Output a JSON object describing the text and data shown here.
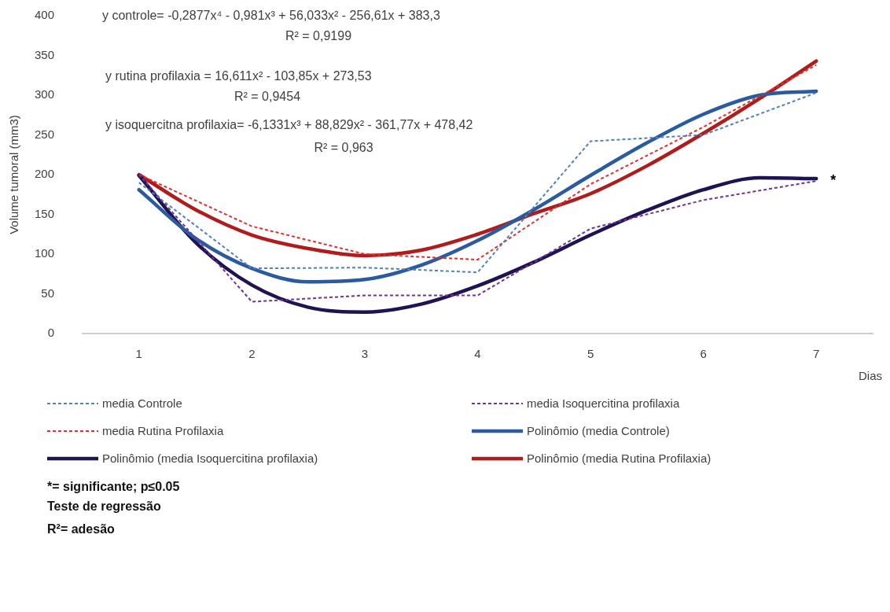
{
  "chart_data": {
    "type": "line",
    "ylabel": "Volume tumoral (mm3)",
    "xlabel": "Dias",
    "x": [
      1,
      2,
      3,
      4,
      5,
      6,
      7
    ],
    "xlim": [
      0.5,
      7.5
    ],
    "xticks": [
      1,
      2,
      3,
      4,
      5,
      6,
      7
    ],
    "ylim": [
      0,
      400
    ],
    "yticks": [
      0,
      50,
      100,
      150,
      200,
      250,
      300,
      350,
      400
    ],
    "grid": false,
    "legend": "bottom",
    "marker": "none",
    "series": [
      {
        "name": "media Controle",
        "color": "#4f81bd",
        "line_style": "dashed",
        "values": [
          190,
          82,
          83,
          77,
          242,
          250,
          303
        ]
      },
      {
        "name": "media Isoquercitina profilaxia",
        "color": "#7030a0",
        "line_style": "dashed",
        "values": [
          200,
          40,
          48,
          48,
          132,
          168,
          192
        ]
      },
      {
        "name": "media Rutina Profilaxia",
        "color": "#e0302a",
        "line_style": "dashed",
        "values": [
          200,
          135,
          100,
          93,
          188,
          260,
          338
        ]
      },
      {
        "name": "Polinômio (media Controle)",
        "color": "#2a5aa0",
        "line_style": "solid",
        "x": [
          1,
          1.5,
          2,
          2.5,
          3,
          3.5,
          4,
          4.5,
          5,
          5.5,
          6,
          6.5,
          7
        ],
        "values": [
          181,
          120,
          82,
          65,
          68,
          86,
          117,
          156,
          199,
          240,
          276,
          300,
          305
        ]
      },
      {
        "name": "Polinômio (media Isoquercitina profilaxia)",
        "color": "#1f1452",
        "line_style": "solid",
        "x": [
          1,
          1.5,
          2,
          2.5,
          3,
          3.5,
          4,
          4.5,
          5,
          5.5,
          6,
          6.5,
          7
        ],
        "values": [
          199,
          115,
          61,
          33,
          27,
          37,
          60,
          90,
          124,
          155,
          181,
          196,
          195
        ]
      },
      {
        "name": "Polinômio (media Rutina Profilaxia)",
        "color": "#b01c1c",
        "line_style": "solid",
        "x": [
          1,
          1.5,
          2,
          2.5,
          3,
          3.5,
          4,
          4.5,
          5,
          5.5,
          6,
          6.5,
          7
        ],
        "values": [
          200,
          156,
          124,
          107,
          98,
          105,
          125,
          151,
          176,
          211,
          252,
          296,
          343
        ]
      }
    ],
    "annotations": [
      "y controle= -0,2877x⁴ - 0,981x³ + 56,033x² - 256,61x + 383,3",
      "R² = 0,9199",
      "y rutina profilaxia = 16,611x² - 103,85x + 273,53",
      "R² = 0,9454",
      "y isoquercitna profilaxia= -6,1331x³ + 88,829x² - 361,77x + 478,42",
      "R² = 0,963",
      {
        "text": "*",
        "x": 7,
        "y": 195
      },
      "*= significante; p≤0.05",
      "Teste de regressão",
      "R²= adesão"
    ]
  }
}
